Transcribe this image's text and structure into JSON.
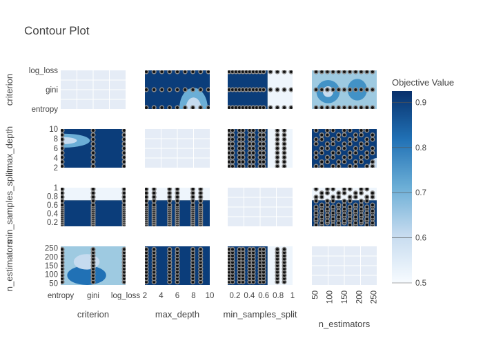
{
  "chart_data": {
    "type": "contour",
    "title": "Contour Plot",
    "params": [
      {
        "name": "criterion",
        "kind": "categorical",
        "categories": [
          "entropy",
          "gini",
          "log_loss"
        ]
      },
      {
        "name": "max_depth",
        "kind": "numeric",
        "range": [
          2,
          10
        ],
        "ticks": [
          2,
          4,
          6,
          8,
          10
        ]
      },
      {
        "name": "min_samples_split",
        "kind": "numeric",
        "range": [
          0.1,
          1
        ],
        "ticks": [
          0.2,
          0.4,
          0.6,
          0.8,
          1
        ]
      },
      {
        "name": "n_estimators",
        "kind": "numeric",
        "range": [
          40,
          260
        ],
        "ticks": [
          50,
          100,
          150,
          200,
          250
        ]
      }
    ],
    "colorbar": {
      "title": "Objective Value",
      "range": [
        0.5,
        0.925
      ],
      "ticks": [
        0.5,
        0.6,
        0.7,
        0.8,
        0.9
      ]
    },
    "grid": "on",
    "samples": {
      "criterion": [
        0,
        1,
        2
      ],
      "max_depth": [
        2,
        3,
        4,
        5,
        6,
        7,
        8,
        9,
        10
      ],
      "min_samples_split": [
        0.1,
        0.15,
        0.2,
        0.25,
        0.3,
        0.35,
        0.4,
        0.45,
        0.5,
        0.55,
        0.6,
        0.7,
        0.8,
        0.9,
        1.0
      ],
      "n_estimators": [
        50,
        70,
        90,
        110,
        130,
        150,
        170,
        190,
        210,
        230,
        250
      ]
    }
  }
}
